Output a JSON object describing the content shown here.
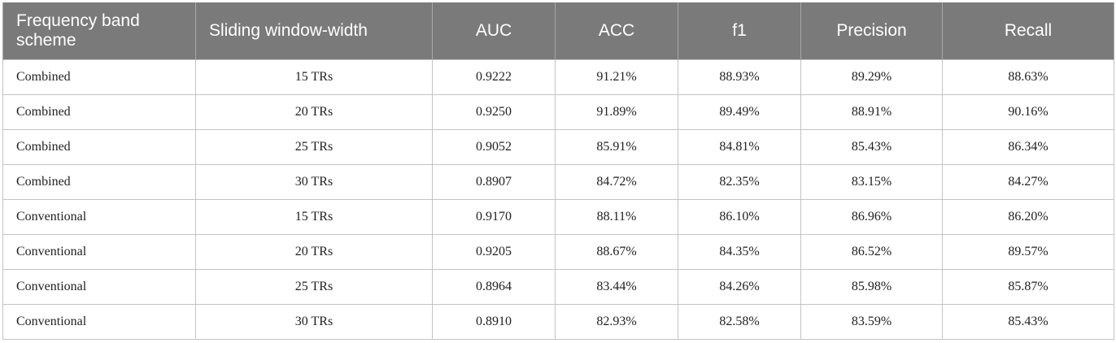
{
  "table": {
    "headers": [
      "Frequency band scheme",
      "Sliding window-width",
      "AUC",
      "ACC",
      "f1",
      "Precision",
      "Recall"
    ],
    "rows": [
      [
        "Combined",
        "15 TRs",
        "0.9222",
        "91.21%",
        "88.93%",
        "89.29%",
        "88.63%"
      ],
      [
        "Combined",
        "20 TRs",
        "0.9250",
        "91.89%",
        "89.49%",
        "88.91%",
        "90.16%"
      ],
      [
        "Combined",
        "25 TRs",
        "0.9052",
        "85.91%",
        "84.81%",
        "85.43%",
        "86.34%"
      ],
      [
        "Combined",
        "30 TRs",
        "0.8907",
        "84.72%",
        "82.35%",
        "83.15%",
        "84.27%"
      ],
      [
        "Conventional",
        "15 TRs",
        "0.9170",
        "88.11%",
        "86.10%",
        "86.96%",
        "86.20%"
      ],
      [
        "Conventional",
        "20 TRs",
        "0.9205",
        "88.67%",
        "84.35%",
        "86.52%",
        "89.57%"
      ],
      [
        "Conventional",
        "25 TRs",
        "0.8964",
        "83.44%",
        "84.26%",
        "85.98%",
        "85.87%"
      ],
      [
        "Conventional",
        "30 TRs",
        "0.8910",
        "82.93%",
        "82.58%",
        "83.59%",
        "85.43%"
      ]
    ]
  }
}
